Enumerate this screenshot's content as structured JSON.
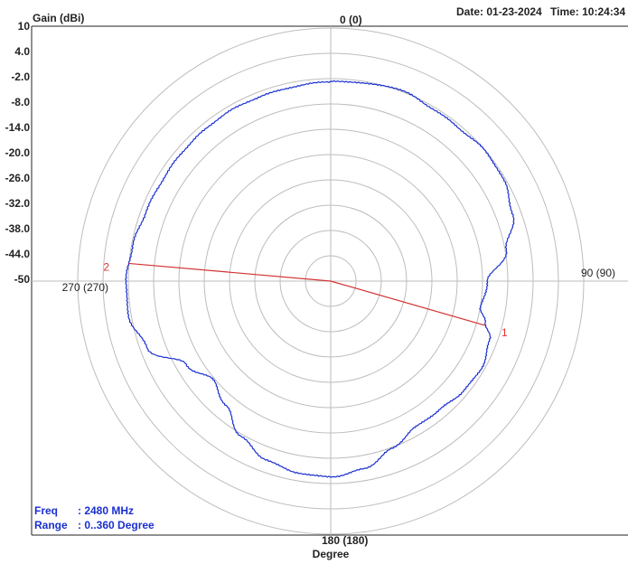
{
  "header": {
    "gain_label": "Gain (dBi)",
    "date_label": "Date: 01-23-2024",
    "time_label": "Time: 10:24:34"
  },
  "info": {
    "freq_label": "Freq",
    "freq_value": ": 2480 MHz",
    "range_label": "Range",
    "range_value": ": 0..360 Degree"
  },
  "colors": {
    "trace": "#1a2fd0",
    "marker": "#d33333",
    "grid": "#bdbdbd",
    "frame": "#222222"
  },
  "chart_data": {
    "type": "line",
    "projection": "polar",
    "angle_unit": "degree",
    "angle_range": [
      0,
      360
    ],
    "radial_range": [
      -50,
      10
    ],
    "radial_ticks": [
      "10",
      "4.0",
      "-2.0",
      "-8.0",
      "-14.0",
      "-20.0",
      "-26.0",
      "-32.0",
      "-38.0",
      "-44.0",
      "-50"
    ],
    "angle_labels": [
      "0 (0)",
      "90 (90)",
      "180 (180)",
      "270 (270)"
    ],
    "ylabel": "Gain (dBi)",
    "xlabel": "Degree",
    "grid": true,
    "series": [
      {
        "angles": [
          0,
          10,
          20,
          30,
          40,
          50,
          60,
          70,
          80,
          90,
          100,
          105,
          110,
          120,
          130,
          140,
          150,
          160,
          170,
          180,
          190,
          200,
          210,
          220,
          230,
          240,
          250,
          260,
          270,
          280,
          290,
          300,
          310,
          320,
          330,
          340,
          350
        ],
        "values": [
          -2.7,
          -2.4,
          -1.7,
          -2.5,
          -2.7,
          -2.1,
          -2.5,
          -4.1,
          -7.7,
          -12.8,
          -13.9,
          -12.1,
          -9.8,
          -8.7,
          -9.2,
          -10.1,
          -10.0,
          -7.7,
          -4.8,
          -3.6,
          -3.9,
          -5.0,
          -7.5,
          -11.4,
          -13.6,
          -10.4,
          -3.7,
          -1.4,
          -1.5,
          -2.3,
          -3.2,
          -3.5,
          -3.4,
          -3.3,
          -3.1,
          -3.2,
          -3.1
        ]
      }
    ],
    "markers": [
      {
        "label": "1",
        "angle": 106
      },
      {
        "label": "2",
        "angle": 275
      }
    ]
  }
}
